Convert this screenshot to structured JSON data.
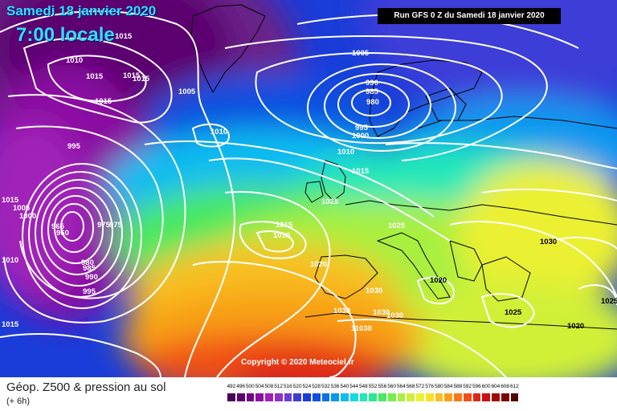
{
  "header": {
    "date": "Samedi 18 janvier 2020",
    "local_time": "7:00 locale",
    "run": "Run GFS 0 Z du Samedi 18 janvier 2020"
  },
  "footer": {
    "parameter": "Géop. Z500 & pression au sol",
    "forecast_step": "(+ 6h)",
    "copyright": "Copyright © 2020 Meteociel.fr"
  },
  "colors": {
    "isobar": "#ffffff",
    "coastline": "#000000"
  },
  "legend": {
    "values": [
      "492",
      "496",
      "500",
      "504",
      "508",
      "512",
      "516",
      "520",
      "524",
      "528",
      "532",
      "536",
      "540",
      "544",
      "548",
      "552",
      "556",
      "560",
      "564",
      "568",
      "572",
      "576",
      "580",
      "584",
      "588",
      "592",
      "596",
      "600",
      "604",
      "608",
      "612"
    ],
    "colors": [
      "#4a005c",
      "#5c0070",
      "#720088",
      "#8a10a2",
      "#a020b8",
      "#9030c8",
      "#6a3cd4",
      "#3c3cd8",
      "#1a3cd8",
      "#1050e0",
      "#0870e8",
      "#0898f0",
      "#10bcf0",
      "#18d8e0",
      "#20e8b8",
      "#28e890",
      "#48e860",
      "#78ec48",
      "#a8f040",
      "#d0f038",
      "#ecf030",
      "#f8e028",
      "#f8c020",
      "#f8a018",
      "#f87818",
      "#f05018",
      "#e02818",
      "#c81010",
      "#a00808",
      "#780000",
      "#500000"
    ]
  },
  "isobar_labels": [
    {
      "text": "1015"
    },
    {
      "text": "1010"
    },
    {
      "text": "1015"
    },
    {
      "text": "1015"
    },
    {
      "text": "1015"
    },
    {
      "text": "1015"
    },
    {
      "text": "1005"
    },
    {
      "text": "995"
    },
    {
      "text": "1015"
    },
    {
      "text": "1005"
    },
    {
      "text": "1000"
    },
    {
      "text": "965"
    },
    {
      "text": "960"
    },
    {
      "text": "975"
    },
    {
      "text": "975"
    },
    {
      "text": "980"
    },
    {
      "text": "985"
    },
    {
      "text": "990"
    },
    {
      "text": "995"
    },
    {
      "text": "1010"
    },
    {
      "text": "1015"
    },
    {
      "text": "1005"
    },
    {
      "text": "990"
    },
    {
      "text": "985"
    },
    {
      "text": "980"
    },
    {
      "text": "995"
    },
    {
      "text": "1000"
    },
    {
      "text": "1010"
    },
    {
      "text": "1010"
    },
    {
      "text": "1015"
    },
    {
      "text": "1025"
    },
    {
      "text": "1025"
    },
    {
      "text": "1015"
    },
    {
      "text": "1010"
    },
    {
      "text": "1020"
    },
    {
      "text": "1030"
    },
    {
      "text": "1030"
    },
    {
      "text": "1030"
    },
    {
      "text": "1030"
    },
    {
      "text": "11030"
    },
    {
      "text": "1020"
    },
    {
      "text": "1030"
    },
    {
      "text": "1025"
    },
    {
      "text": "1020"
    },
    {
      "text": "1025"
    }
  ]
}
